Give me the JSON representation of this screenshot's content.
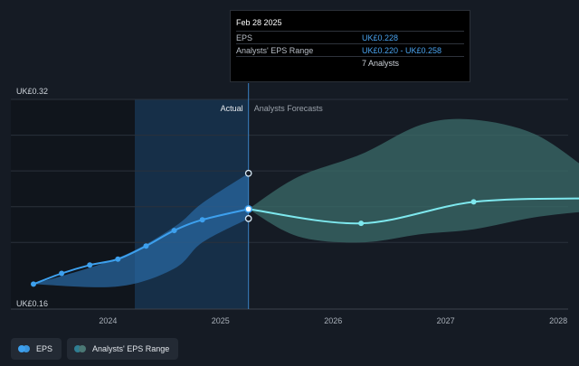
{
  "tooltip": {
    "date": "Feb 28 2025",
    "rows": [
      {
        "label": "EPS",
        "value": "UK£0.228"
      },
      {
        "label": "Analysts' EPS Range",
        "value": "UK£0.220 - UK£0.258"
      },
      {
        "label": "",
        "value": "7 Analysts"
      }
    ]
  },
  "legend": {
    "eps_label": "EPS",
    "range_label": "Analysts' EPS Range"
  },
  "colors": {
    "background": "#151b24",
    "eps": "#3da0ee",
    "forecast_line": "#7ee8ee",
    "forecast_band": "#3b6c69",
    "actual_band": "#2a6aa5"
  },
  "chart_data": {
    "type": "line",
    "y_top_label": "UK£0.32",
    "y_bottom_label": "UK£0.16",
    "ylim": [
      0.16,
      0.32
    ],
    "xlim": [
      2023.25,
      2028.2
    ],
    "x_ticks": [
      2024,
      2025,
      2026,
      2027,
      2028
    ],
    "x_tick_labels": [
      "2024",
      "2025",
      "2026",
      "2027",
      "2028"
    ],
    "actual_label": "Actual",
    "forecast_label": "Analysts Forecasts",
    "highlight_start": 2024.15,
    "divider_x": 2025.16,
    "series": [
      {
        "name": "EPS",
        "x": [
          2023.25,
          2023.5,
          2023.75,
          2024.0,
          2024.25,
          2024.5,
          2024.75,
          2025.16
        ],
        "y": [
          0.165,
          0.174,
          0.181,
          0.186,
          0.197,
          0.21,
          0.219,
          0.228
        ]
      },
      {
        "name": "EPS Forecast",
        "x": [
          2025.16,
          2026.16,
          2027.16,
          2028.16
        ],
        "y": [
          0.228,
          0.216,
          0.234,
          0.237
        ]
      }
    ],
    "forecast_range": {
      "x": [
        2025.16,
        2025.6,
        2026.16,
        2026.7,
        2027.16,
        2027.7,
        2028.16
      ],
      "low": [
        0.228,
        0.205,
        0.2,
        0.207,
        0.211,
        0.221,
        0.226
      ],
      "high": [
        0.228,
        0.255,
        0.274,
        0.299,
        0.303,
        0.291,
        0.262
      ]
    },
    "actual_range": {
      "x": [
        2023.25,
        2024.0,
        2024.5,
        2024.75,
        2025.16
      ],
      "low": [
        0.165,
        0.163,
        0.178,
        0.2,
        0.22
      ],
      "high": [
        0.165,
        0.187,
        0.213,
        0.233,
        0.258
      ]
    },
    "markers": {
      "eps": [
        [
          2023.25,
          0.165
        ],
        [
          2023.5,
          0.174
        ],
        [
          2023.75,
          0.181
        ],
        [
          2024.0,
          0.186
        ],
        [
          2024.25,
          0.197
        ],
        [
          2024.5,
          0.21
        ],
        [
          2024.75,
          0.219
        ],
        [
          2025.16,
          0.228
        ]
      ],
      "range_ends": [
        [
          2025.16,
          0.258
        ],
        [
          2025.16,
          0.22
        ]
      ],
      "forecast": [
        [
          2026.16,
          0.216
        ],
        [
          2027.16,
          0.234
        ],
        [
          2028.16,
          0.237
        ]
      ]
    }
  }
}
